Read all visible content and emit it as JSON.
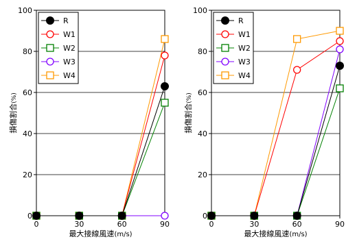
{
  "chart_data": [
    {
      "type": "line",
      "xlabel": "最大接線風速",
      "xunit": "(m/s)",
      "ylabel": "損傷割合",
      "yunit": "(%)",
      "x": [
        0,
        30,
        60,
        90
      ],
      "xticks": [
        "0",
        "30",
        "60",
        "90"
      ],
      "yticks": [
        "0",
        "20",
        "40",
        "60",
        "80",
        "100"
      ],
      "ylim": [
        0,
        100
      ],
      "grid": "horizontal",
      "legend": "top-left",
      "series": [
        {
          "name": "R",
          "color": "#000000",
          "marker": "filled-circle",
          "values": [
            0,
            0,
            0,
            63
          ]
        },
        {
          "name": "W1",
          "color": "#ff0000",
          "marker": "open-circle",
          "values": [
            0,
            0,
            0,
            78
          ]
        },
        {
          "name": "W2",
          "color": "#008000",
          "marker": "open-square",
          "values": [
            0,
            0,
            0,
            55
          ]
        },
        {
          "name": "W3",
          "color": "#8000ff",
          "marker": "open-circle",
          "values": [
            0,
            0,
            0,
            0
          ]
        },
        {
          "name": "W4",
          "color": "#ff9900",
          "marker": "open-square",
          "values": [
            0,
            0,
            0,
            86
          ]
        }
      ]
    },
    {
      "type": "line",
      "xlabel": "最大接線風速",
      "xunit": "(m/s)",
      "ylabel": "損傷割合",
      "yunit": "(%)",
      "x": [
        0,
        30,
        60,
        90
      ],
      "xticks": [
        "0",
        "30",
        "60",
        "90"
      ],
      "yticks": [
        "0",
        "20",
        "40",
        "60",
        "80",
        "100"
      ],
      "ylim": [
        0,
        100
      ],
      "grid": "horizontal",
      "legend": "top-left",
      "series": [
        {
          "name": "R",
          "color": "#000000",
          "marker": "filled-circle",
          "values": [
            0,
            0,
            0,
            73
          ]
        },
        {
          "name": "W1",
          "color": "#ff0000",
          "marker": "open-circle",
          "values": [
            0,
            0,
            71,
            85
          ]
        },
        {
          "name": "W2",
          "color": "#008000",
          "marker": "open-square",
          "values": [
            0,
            0,
            0,
            62
          ]
        },
        {
          "name": "W3",
          "color": "#8000ff",
          "marker": "open-circle",
          "values": [
            0,
            0,
            0,
            81
          ]
        },
        {
          "name": "W4",
          "color": "#ff9900",
          "marker": "open-square",
          "values": [
            0,
            0,
            86,
            90
          ]
        }
      ]
    }
  ]
}
